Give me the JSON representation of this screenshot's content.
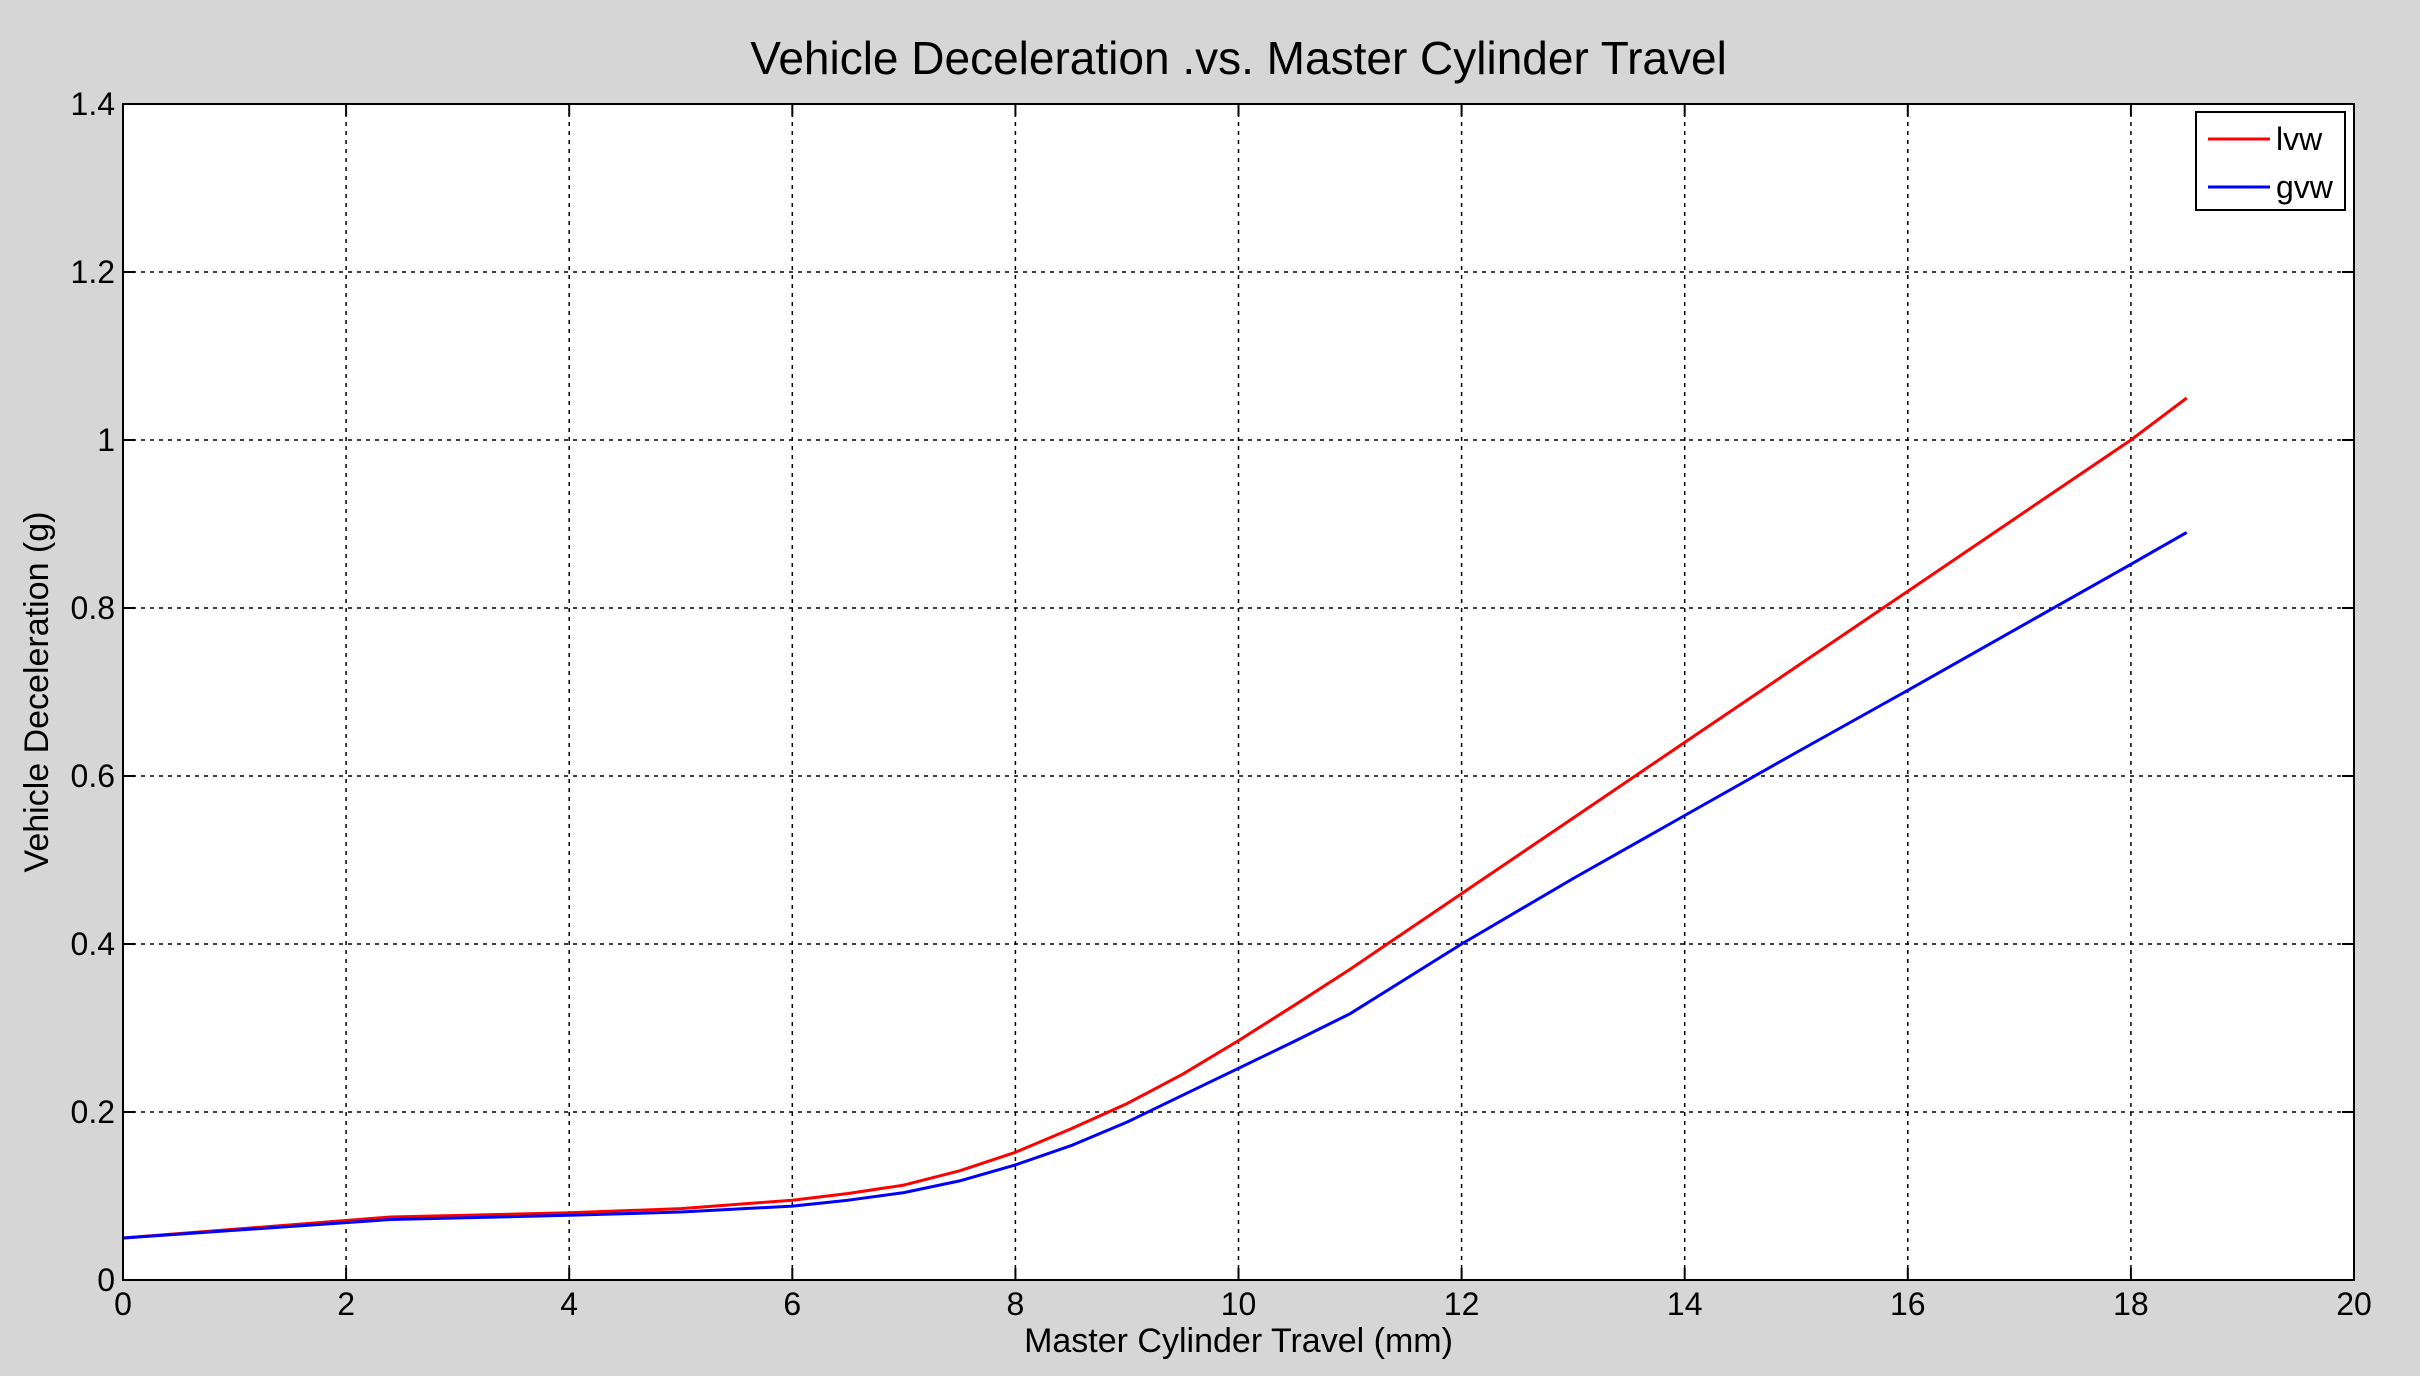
{
  "chart_data": {
    "type": "line",
    "title": "Vehicle Deceleration .vs. Master Cylinder Travel",
    "xlabel": "Master Cylinder Travel (mm)",
    "ylabel": "Vehicle Deceleration (g)",
    "xlim": [
      0,
      20
    ],
    "ylim": [
      0,
      1.4
    ],
    "xticks": [
      0,
      2,
      4,
      6,
      8,
      10,
      12,
      14,
      16,
      18,
      20
    ],
    "yticks": [
      0,
      0.2,
      0.4,
      0.6,
      0.8,
      1,
      1.2,
      1.4
    ],
    "xtick_labels": [
      "0",
      "2",
      "4",
      "6",
      "8",
      "10",
      "12",
      "14",
      "16",
      "18",
      "20"
    ],
    "ytick_labels": [
      "0",
      "0.2",
      "0.4",
      "0.6",
      "0.8",
      "1",
      "1.2",
      "1.4"
    ],
    "grid": true,
    "legend_position": "top-right",
    "series": [
      {
        "name": "lvw",
        "color": "#ff0000",
        "x": [
          0,
          2.4,
          4,
          5,
          6,
          6.5,
          7,
          7.5,
          8,
          8.5,
          9,
          9.5,
          10,
          10.5,
          11,
          12,
          13,
          14,
          15,
          16,
          17,
          18,
          18.5
        ],
        "y": [
          0.05,
          0.075,
          0.08,
          0.085,
          0.095,
          0.103,
          0.113,
          0.13,
          0.152,
          0.18,
          0.21,
          0.245,
          0.285,
          0.327,
          0.37,
          0.46,
          0.55,
          0.64,
          0.73,
          0.82,
          0.91,
          1.0,
          1.05
        ]
      },
      {
        "name": "gvw",
        "color": "#0000ff",
        "x": [
          0,
          2.4,
          4,
          5,
          6,
          6.5,
          7,
          7.5,
          8,
          8.5,
          9,
          9.5,
          10,
          10.5,
          11,
          12,
          13,
          14,
          15,
          16,
          17,
          18,
          18.5
        ],
        "y": [
          0.05,
          0.072,
          0.077,
          0.081,
          0.088,
          0.095,
          0.104,
          0.118,
          0.137,
          0.16,
          0.188,
          0.22,
          0.252,
          0.284,
          0.317,
          0.4,
          0.478,
          0.553,
          0.628,
          0.702,
          0.777,
          0.852,
          0.89
        ]
      }
    ]
  }
}
